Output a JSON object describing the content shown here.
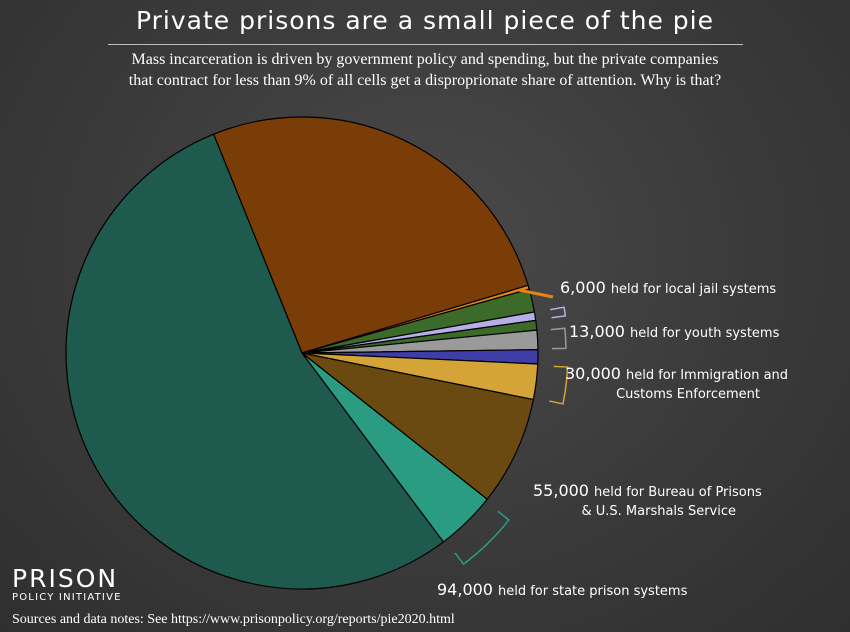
{
  "header": {
    "title": "Private prisons are a small piece of the pie",
    "subtitle_line1": "Mass incarceration is driven by government policy and spending, but the private companies",
    "subtitle_line2": "that contract for less than 9% of all cells get a disproprionate share of attention. Why is that?"
  },
  "footer": {
    "logo_main": "PRISON",
    "logo_sub": "POLICY INITIATIVE",
    "source": "Sources and data notes: See https://www.prisonpolicy.org/reports/pie2020.html"
  },
  "colors": {
    "state_prisons": "#1e5a4d",
    "state_private": "#2a9c82",
    "federal": "#6b4a12",
    "federal_private": "#d4a437",
    "immigration": "#3f3ea8",
    "immigration_private": "#9a9a9a",
    "youth": "#3c6a28",
    "youth_private": "#b6aee8",
    "local_jails": "#7a3d08",
    "local_private": "#e68416",
    "edge": "#000000"
  },
  "chart_data": {
    "type": "pie",
    "unit": "people",
    "start_angle_deg": -112,
    "slices": [
      {
        "key": "local_jails",
        "value": 602000,
        "color_key": "local_jails",
        "private": false
      },
      {
        "key": "local_private",
        "value": 6000,
        "color_key": "local_private",
        "private": true
      },
      {
        "key": "youth",
        "value": 36000,
        "color_key": "youth",
        "private": false
      },
      {
        "key": "youth_private",
        "value": 13000,
        "color_key": "youth_private",
        "private": true
      },
      {
        "key": "youth_gap",
        "value": 15000,
        "color_key": "youth",
        "private": false
      },
      {
        "key": "immigration_private",
        "value": 30000,
        "color_key": "immigration_private",
        "private": true
      },
      {
        "key": "immigration",
        "value": 22000,
        "color_key": "immigration",
        "private": false
      },
      {
        "key": "federal_private",
        "value": 55000,
        "color_key": "federal_private",
        "private": true
      },
      {
        "key": "federal",
        "value": 170000,
        "color_key": "federal",
        "private": false
      },
      {
        "key": "state_private",
        "value": 94000,
        "color_key": "state_private",
        "private": true
      },
      {
        "key": "state_prisons",
        "value": 1230000,
        "color_key": "state_prisons",
        "private": false
      }
    ],
    "annotations": [
      {
        "slice": "local_private",
        "number": "6,000",
        "text": "held for local jail systems",
        "text2": ""
      },
      {
        "slice": "youth_private",
        "number": "13,000",
        "text": "held for youth systems",
        "text2": ""
      },
      {
        "slice": "immigration_private",
        "number": "30,000",
        "text": "held for Immigration and",
        "text2": "Customs Enforcement"
      },
      {
        "slice": "federal_private",
        "number": "55,000",
        "text": "held for Bureau of Prisons",
        "text2": "& U.S. Marshals Service"
      },
      {
        "slice": "state_private",
        "number": "94,000",
        "text": "held for state prison systems",
        "text2": ""
      }
    ]
  }
}
